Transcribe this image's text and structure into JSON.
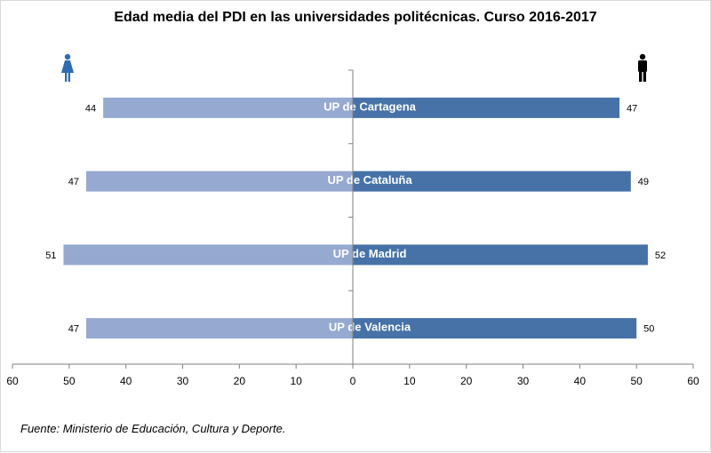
{
  "chart_data": {
    "type": "bar",
    "orientation": "horizontal-butterfly",
    "title": "Edad media del PDI en las universidades politécnicas. Curso 2016-2017",
    "categories": [
      "UP de Cartagena",
      "UP de Cataluña",
      "UP de Madrid",
      "UP de Valencia"
    ],
    "series": [
      {
        "side": "left",
        "icon": "female-icon",
        "color": "#95A9D1",
        "values": [
          44,
          47,
          51,
          47
        ]
      },
      {
        "side": "right",
        "icon": "male-icon",
        "color": "#4672A8",
        "values": [
          47,
          49,
          52,
          50
        ]
      }
    ],
    "xlim": [
      -60,
      60
    ],
    "xticks": [
      "60",
      "50",
      "40",
      "30",
      "20",
      "10",
      "0",
      "10",
      "20",
      "30",
      "40",
      "50",
      "60"
    ],
    "grid": false,
    "legend": "icons top-left (female) and top-right (male)"
  },
  "icons": {
    "female_color": "#2E6BB0",
    "male_color": "#000000"
  },
  "source": "Fuente: Ministerio de Educación, Cultura y Deporte."
}
